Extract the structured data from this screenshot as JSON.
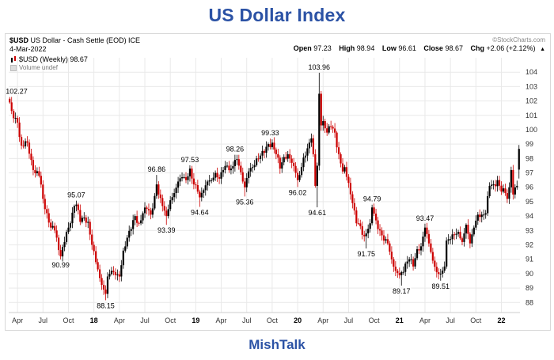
{
  "title": "US Dollar Index",
  "footer": "MishTalk",
  "header": {
    "symbol": "$USD",
    "description": "US Dollar - Cash Settle (EOD) ICE",
    "date": "4-Mar-2022",
    "source": "©StockCharts.com",
    "ohlc": {
      "open_label": "Open",
      "open": "97.23",
      "high_label": "High",
      "high": "98.94",
      "low_label": "Low",
      "low": "96.61",
      "close_label": "Close",
      "close": "98.67",
      "chg_label": "Chg",
      "chg": "+2.06 (+2.12%)",
      "direction": "▲"
    }
  },
  "legend": {
    "series": "$USD (Weekly) 98.67",
    "volume": "Volume undef"
  },
  "chart_data": {
    "type": "candlestick",
    "timeframe": "weekly",
    "title": "US Dollar Index ($USD weekly, Mar 2017 - Mar 2022)",
    "weeks": 261,
    "y_range": [
      87.3,
      105.0
    ],
    "y_ticks": [
      104,
      103,
      102,
      101,
      100,
      99,
      98,
      97,
      96,
      95,
      94,
      93,
      92,
      91,
      90,
      89,
      88
    ],
    "x_ticks": [
      {
        "label": "Apr",
        "week": 4,
        "year": false
      },
      {
        "label": "Jul",
        "week": 17,
        "year": false
      },
      {
        "label": "Oct",
        "week": 30,
        "year": false
      },
      {
        "label": "18",
        "week": 43,
        "year": true
      },
      {
        "label": "Apr",
        "week": 56,
        "year": false
      },
      {
        "label": "Jul",
        "week": 69,
        "year": false
      },
      {
        "label": "Oct",
        "week": 82,
        "year": false
      },
      {
        "label": "19",
        "week": 95,
        "year": true
      },
      {
        "label": "Apr",
        "week": 108,
        "year": false
      },
      {
        "label": "Jul",
        "week": 121,
        "year": false
      },
      {
        "label": "Oct",
        "week": 134,
        "year": false
      },
      {
        "label": "20",
        "week": 147,
        "year": true
      },
      {
        "label": "Apr",
        "week": 160,
        "year": false
      },
      {
        "label": "Jul",
        "week": 173,
        "year": false
      },
      {
        "label": "Oct",
        "week": 186,
        "year": false
      },
      {
        "label": "21",
        "week": 199,
        "year": true
      },
      {
        "label": "Apr",
        "week": 212,
        "year": false
      },
      {
        "label": "Jul",
        "week": 225,
        "year": false
      },
      {
        "label": "Oct",
        "week": 238,
        "year": false
      },
      {
        "label": "22",
        "week": 251,
        "year": true
      }
    ],
    "waypoints": [
      [
        0,
        101.9
      ],
      [
        1,
        101.3
      ],
      [
        2,
        100.8
      ],
      [
        4,
        100.5
      ],
      [
        6,
        98.9
      ],
      [
        9,
        99.1
      ],
      [
        12,
        97.2
      ],
      [
        15,
        96.8
      ],
      [
        17,
        95.2
      ],
      [
        19,
        94.2
      ],
      [
        21,
        93.2
      ],
      [
        23,
        93.0
      ],
      [
        26,
        91.2
      ],
      [
        28,
        92.2
      ],
      [
        30,
        93.2
      ],
      [
        33,
        94.7
      ],
      [
        34,
        94.8
      ],
      [
        36,
        93.6
      ],
      [
        38,
        93.9
      ],
      [
        40,
        93.6
      ],
      [
        42,
        92.0
      ],
      [
        44,
        90.8
      ],
      [
        46,
        89.7
      ],
      [
        48,
        88.9
      ],
      [
        49,
        88.6
      ],
      [
        50,
        89.8
      ],
      [
        52,
        90.2
      ],
      [
        54,
        89.9
      ],
      [
        56,
        89.8
      ],
      [
        58,
        91.6
      ],
      [
        60,
        92.5
      ],
      [
        62,
        93.1
      ],
      [
        64,
        94.0
      ],
      [
        66,
        93.5
      ],
      [
        68,
        94.2
      ],
      [
        70,
        94.5
      ],
      [
        72,
        94.1
      ],
      [
        74,
        95.4
      ],
      [
        75,
        96.2
      ],
      [
        76,
        95.5
      ],
      [
        78,
        94.7
      ],
      [
        80,
        94.0
      ],
      [
        82,
        95.1
      ],
      [
        84,
        95.6
      ],
      [
        86,
        96.4
      ],
      [
        88,
        96.7
      ],
      [
        90,
        96.5
      ],
      [
        92,
        97.3
      ],
      [
        94,
        96.2
      ],
      [
        96,
        95.7
      ],
      [
        97,
        95.3
      ],
      [
        99,
        95.8
      ],
      [
        101,
        96.4
      ],
      [
        103,
        96.5
      ],
      [
        105,
        97.0
      ],
      [
        107,
        96.6
      ],
      [
        109,
        97.2
      ],
      [
        111,
        97.5
      ],
      [
        113,
        97.3
      ],
      [
        115,
        97.9
      ],
      [
        117,
        97.5
      ],
      [
        119,
        96.4
      ],
      [
        120,
        96.0
      ],
      [
        122,
        97.1
      ],
      [
        124,
        97.4
      ],
      [
        126,
        98.0
      ],
      [
        128,
        98.2
      ],
      [
        130,
        98.4
      ],
      [
        132,
        99.0
      ],
      [
        134,
        99.1
      ],
      [
        136,
        98.3
      ],
      [
        138,
        97.3
      ],
      [
        140,
        98.1
      ],
      [
        142,
        98.3
      ],
      [
        144,
        97.7
      ],
      [
        146,
        97.0
      ],
      [
        147,
        96.5
      ],
      [
        149,
        97.4
      ],
      [
        151,
        98.2
      ],
      [
        153,
        99.1
      ],
      [
        154,
        99.4
      ],
      [
        155,
        98.3
      ],
      [
        156,
        96.1
      ],
      [
        157,
        97.5
      ],
      [
        158,
        102.5
      ],
      [
        159,
        100.3
      ],
      [
        160,
        100.6
      ],
      [
        162,
        99.8
      ],
      [
        164,
        100.2
      ],
      [
        166,
        99.8
      ],
      [
        168,
        98.3
      ],
      [
        170,
        97.1
      ],
      [
        171,
        97.4
      ],
      [
        173,
        96.3
      ],
      [
        175,
        94.9
      ],
      [
        177,
        93.5
      ],
      [
        179,
        93.3
      ],
      [
        181,
        92.6
      ],
      [
        182,
        92.8
      ],
      [
        184,
        93.5
      ],
      [
        185,
        94.6
      ],
      [
        187,
        93.7
      ],
      [
        189,
        93.0
      ],
      [
        191,
        92.3
      ],
      [
        193,
        92.1
      ],
      [
        195,
        91.0
      ],
      [
        197,
        90.2
      ],
      [
        199,
        89.9
      ],
      [
        200,
        90.1
      ],
      [
        202,
        90.7
      ],
      [
        204,
        91.0
      ],
      [
        206,
        90.5
      ],
      [
        208,
        91.7
      ],
      [
        210,
        91.9
      ],
      [
        212,
        93.2
      ],
      [
        214,
        92.1
      ],
      [
        216,
        90.9
      ],
      [
        218,
        90.1
      ],
      [
        220,
        90.0
      ],
      [
        222,
        90.5
      ],
      [
        223,
        92.3
      ],
      [
        225,
        92.4
      ],
      [
        227,
        92.7
      ],
      [
        229,
        92.9
      ],
      [
        231,
        92.2
      ],
      [
        233,
        93.4
      ],
      [
        235,
        92.1
      ],
      [
        237,
        93.2
      ],
      [
        239,
        94.1
      ],
      [
        241,
        94.1
      ],
      [
        243,
        94.2
      ],
      [
        245,
        96.1
      ],
      [
        247,
        96.2
      ],
      [
        249,
        96.5
      ],
      [
        251,
        95.7
      ],
      [
        253,
        95.6
      ],
      [
        254,
        95.2
      ],
      [
        255,
        96.0
      ],
      [
        256,
        97.2
      ],
      [
        257,
        95.5
      ],
      [
        258,
        96.0
      ],
      [
        259,
        96.1
      ],
      [
        260,
        98.67
      ]
    ],
    "key_candles": {
      "0": {
        "high": 102.27
      },
      "26": {
        "low": 90.99
      },
      "34": {
        "high": 95.07
      },
      "49": {
        "low": 88.15
      },
      "75": {
        "high": 96.86
      },
      "80": {
        "low": 93.39
      },
      "92": {
        "high": 97.53
      },
      "97": {
        "low": 94.64
      },
      "115": {
        "high": 98.26
      },
      "120": {
        "low": 95.36
      },
      "134": {
        "high": 99.33
      },
      "147": {
        "low": 96.02
      },
      "157": {
        "low": 94.61
      },
      "158": {
        "high": 103.96
      },
      "182": {
        "low": 91.75
      },
      "185": {
        "high": 94.79
      },
      "200": {
        "low": 89.17
      },
      "212": {
        "high": 93.47
      },
      "220": {
        "low": 89.51
      },
      "260": {
        "open": 97.23,
        "high": 98.94,
        "low": 96.61,
        "close": 98.67
      }
    },
    "annotations": [
      {
        "text": "102.27",
        "week": 0,
        "pos": "above"
      },
      {
        "text": "90.99",
        "week": 26,
        "pos": "below"
      },
      {
        "text": "95.07",
        "week": 34,
        "pos": "above"
      },
      {
        "text": "88.15",
        "week": 49,
        "pos": "below"
      },
      {
        "text": "96.86",
        "week": 75,
        "pos": "above"
      },
      {
        "text": "93.39",
        "week": 80,
        "pos": "below"
      },
      {
        "text": "97.53",
        "week": 92,
        "pos": "above"
      },
      {
        "text": "94.64",
        "week": 97,
        "pos": "below"
      },
      {
        "text": "98.26",
        "week": 115,
        "pos": "above"
      },
      {
        "text": "95.36",
        "week": 120,
        "pos": "below"
      },
      {
        "text": "99.33",
        "week": 133,
        "pos": "above"
      },
      {
        "text": "96.02",
        "week": 147,
        "pos": "below"
      },
      {
        "text": "94.61",
        "week": 157,
        "pos": "below"
      },
      {
        "text": "103.96",
        "week": 158,
        "pos": "above"
      },
      {
        "text": "91.75",
        "week": 182,
        "pos": "below"
      },
      {
        "text": "94.79",
        "week": 185,
        "pos": "above"
      },
      {
        "text": "89.17",
        "week": 200,
        "pos": "below"
      },
      {
        "text": "93.47",
        "week": 212,
        "pos": "above"
      },
      {
        "text": "89.51",
        "week": 220,
        "pos": "below"
      }
    ],
    "colors": {
      "up": "#000000",
      "down": "#cc0000",
      "grid": "#e9e9e9",
      "axis_text": "#333333",
      "title_blue": "#2b52a5",
      "source_gray": "#888888"
    },
    "legend_position": "top-left",
    "grid": true
  }
}
